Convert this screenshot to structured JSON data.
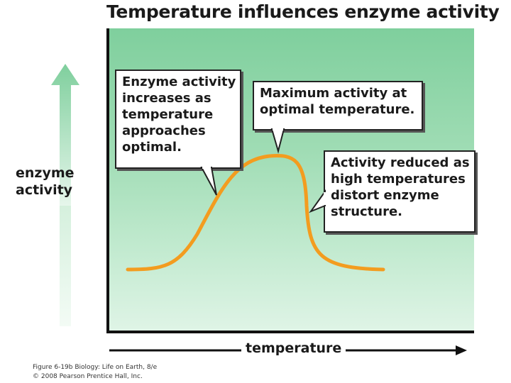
{
  "title": "Temperature influences enzyme activity",
  "y_label_lines": [
    "enzyme",
    "activity"
  ],
  "x_label": "temperature",
  "callouts": {
    "rise": [
      "Enzyme activity",
      "increases as",
      "temperature",
      "approaches",
      "optimal."
    ],
    "peak": [
      "Maximum activity at",
      "optimal temperature."
    ],
    "fall": [
      "Activity reduced as",
      "high temperatures",
      "distort enzyme",
      "structure."
    ]
  },
  "caption_lines": [
    "Figure 6-19b Biology: Life on Earth, 8/e",
    "© 2008 Pearson Prentice Hall, Inc."
  ],
  "colors": {
    "curve": "#f39c1f",
    "arrow": "#7fcf9d",
    "plot_top": "#7fcf9d",
    "plot_bottom": "#dff4e6"
  }
}
